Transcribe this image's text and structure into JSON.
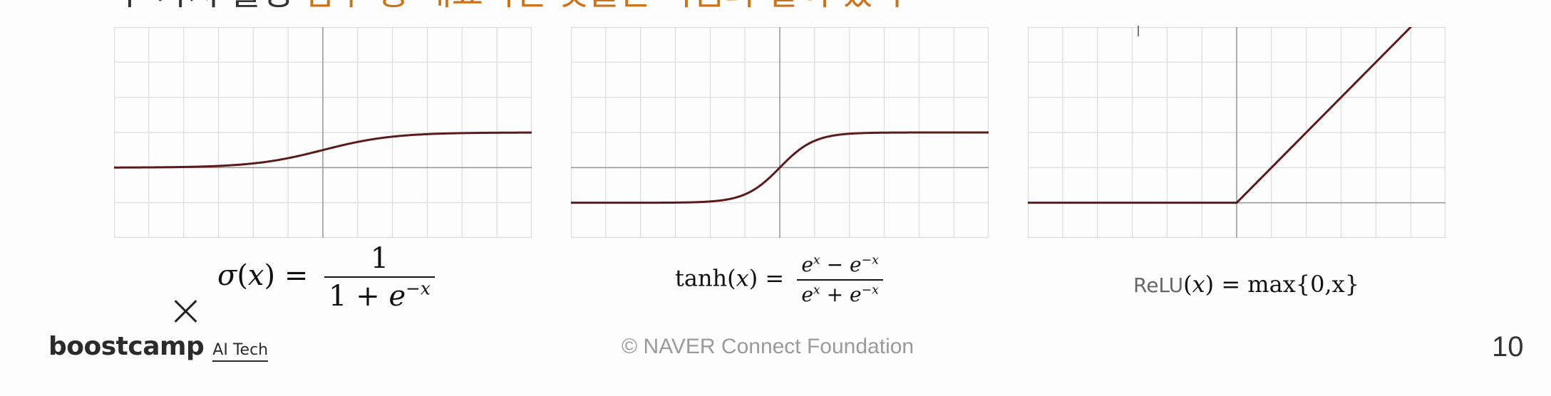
{
  "chart_data": [
    {
      "type": "line",
      "title": "",
      "function": "sigmoid",
      "xlim": [
        -6,
        6
      ],
      "ylim": [
        -2,
        4
      ],
      "grid": true,
      "series": [
        {
          "x": [
            -6,
            -5,
            -4,
            -3,
            -2,
            -1,
            0,
            1,
            2,
            3,
            4,
            5,
            6
          ],
          "values": [
            0.0025,
            0.0067,
            0.018,
            0.047,
            0.119,
            0.269,
            0.5,
            0.731,
            0.881,
            0.953,
            0.982,
            0.993,
            0.9975
          ]
        }
      ]
    },
    {
      "type": "line",
      "title": "",
      "function": "tanh",
      "xlim": [
        -6,
        6
      ],
      "ylim": [
        -2,
        4
      ],
      "grid": true,
      "series": [
        {
          "x": [
            -6,
            -5,
            -4,
            -3,
            -2,
            -1,
            0,
            1,
            2,
            3,
            4,
            5,
            6
          ],
          "values": [
            -1.0,
            -0.9999,
            -0.9993,
            -0.995,
            -0.964,
            -0.762,
            0,
            0.762,
            0.964,
            0.995,
            0.9993,
            0.9999,
            1.0
          ]
        }
      ]
    },
    {
      "type": "line",
      "title": "",
      "function": "relu",
      "xlim": [
        -6,
        6
      ],
      "ylim": [
        -1,
        5
      ],
      "grid": true,
      "series": [
        {
          "x": [
            -6,
            0,
            5
          ],
          "values": [
            0,
            0,
            5
          ]
        }
      ]
    }
  ],
  "formulas": {
    "sigmoid": {
      "lhs_fn": "σ",
      "lhs_var": "(x)",
      "eq": "=",
      "numerator": "1",
      "den_prefix": "1 + ",
      "den_base": "e",
      "den_exp": "−x"
    },
    "tanh": {
      "lhs_fn": "tanh",
      "lhs_var": "(x)",
      "eq": "=",
      "num_base1": "e",
      "num_exp1": "x",
      "num_op": " − ",
      "num_base2": "e",
      "num_exp2": "−x",
      "den_base1": "e",
      "den_exp1": "x",
      "den_op": " + ",
      "den_base2": "e",
      "den_exp2": "−x"
    },
    "relu": {
      "lhs_fn": "ReLU",
      "lhs_var": "(x)",
      "eq": " = ",
      "rhs_fn": "max",
      "rhs_args": "{0,x}"
    }
  },
  "header": {
    "partial_dark": "두 가지 활성",
    "partial_accent": "함수 중 대표적인 것들은 다음과 같이 있다"
  },
  "footer": {
    "brand_name": "boostcamp",
    "brand_sub": "AI Tech",
    "copyright": "©  NAVER Connect Foundation",
    "page_number": "10"
  },
  "icons": {
    "close": "close-icon",
    "cursor": "text-cursor-icon",
    "cursor_glyph": "I"
  },
  "colors": {
    "curve": "#5b1b1b",
    "grid": "#dcdcdc",
    "axis": "#9a9a9a",
    "accent": "#c9741a"
  }
}
